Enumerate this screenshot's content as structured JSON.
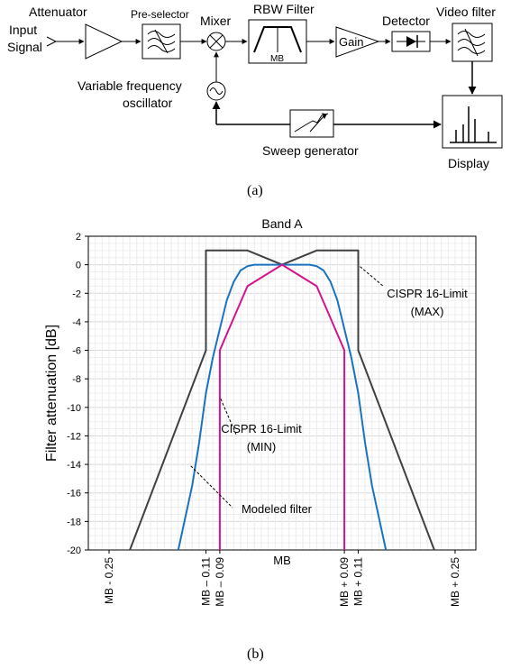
{
  "diagram": {
    "input_label_line1": "Input",
    "input_label_line2": "Signal",
    "attenuator": "Attenuator",
    "preselector": "Pre-selector",
    "mixer": "Mixer",
    "rbw_filter": "RBW Filter",
    "rbw_inner": "MB",
    "gain": "Gain",
    "detector": "Detector",
    "video_filter": "Video filter",
    "vfo_line1": "Variable frequency",
    "vfo_line2": "oscillator",
    "sweep": "Sweep generator",
    "display": "Display",
    "caption": "(a)"
  },
  "chart_data": {
    "type": "line",
    "title": "Band A",
    "xlabel": "MB",
    "ylabel": "Filter attenuation [dB]",
    "ylim": [
      -20,
      2
    ],
    "yticks": [
      2,
      0,
      -2,
      -4,
      -6,
      -8,
      -10,
      -12,
      -14,
      -16,
      -18,
      -20
    ],
    "x_ticks": [
      {
        "x": -0.25,
        "label": "MB - 0.25"
      },
      {
        "x": -0.11,
        "label": "MB – 0.11"
      },
      {
        "x": -0.09,
        "label": "MB – 0.09"
      },
      {
        "x": 0.09,
        "label": "MB + 0.09"
      },
      {
        "x": 0.11,
        "label": "MB + 0.11"
      },
      {
        "x": 0.25,
        "label": "MB + 0.25"
      }
    ],
    "grid": true,
    "series": [
      {
        "name": "CISPR 16-Limit (MAX)",
        "color": "#404040",
        "x": [
          -0.22,
          -0.11,
          -0.11,
          -0.07,
          -0.05,
          0.0,
          0.05,
          0.07,
          0.11,
          0.11,
          0.22
        ],
        "y": [
          -20,
          -6,
          1,
          1,
          1,
          0,
          1,
          1,
          1,
          -6,
          -20
        ]
      },
      {
        "name": "Modeled filter",
        "color": "#1a73c0",
        "x": [
          -0.15,
          -0.13,
          -0.12,
          -0.11,
          -0.1,
          -0.09,
          -0.08,
          -0.07,
          -0.06,
          -0.05,
          -0.04,
          0.0,
          0.04,
          0.05,
          0.06,
          0.07,
          0.08,
          0.09,
          0.1,
          0.11,
          0.12,
          0.13,
          0.15
        ],
        "y": [
          -20,
          -15.5,
          -12.5,
          -9,
          -6.5,
          -4.5,
          -2.5,
          -1.2,
          -0.4,
          -0.1,
          0,
          0,
          0,
          -0.1,
          -0.4,
          -1.2,
          -2.5,
          -4.5,
          -6.5,
          -9,
          -12.5,
          -15.5,
          -20
        ]
      },
      {
        "name": "CISPR 16-Limit (MIN)",
        "color": "#d4148c",
        "x": [
          -0.09,
          -0.09,
          -0.05,
          0.0,
          0.05,
          0.09,
          0.09
        ],
        "y": [
          -20,
          -6,
          -1.5,
          0,
          -1.5,
          -6,
          -20
        ]
      }
    ],
    "annotations": [
      {
        "line1": "CISPR 16-Limit",
        "line2": "(MAX)",
        "x": 0.11,
        "y": -0.5
      },
      {
        "line1": "CISPR 16-Limit",
        "line2": "(MIN)",
        "x": -0.09,
        "y": -9.5
      },
      {
        "line1": "Modeled filter",
        "line2": "",
        "x": -0.125,
        "y": -14
      }
    ],
    "caption": "(b)"
  }
}
